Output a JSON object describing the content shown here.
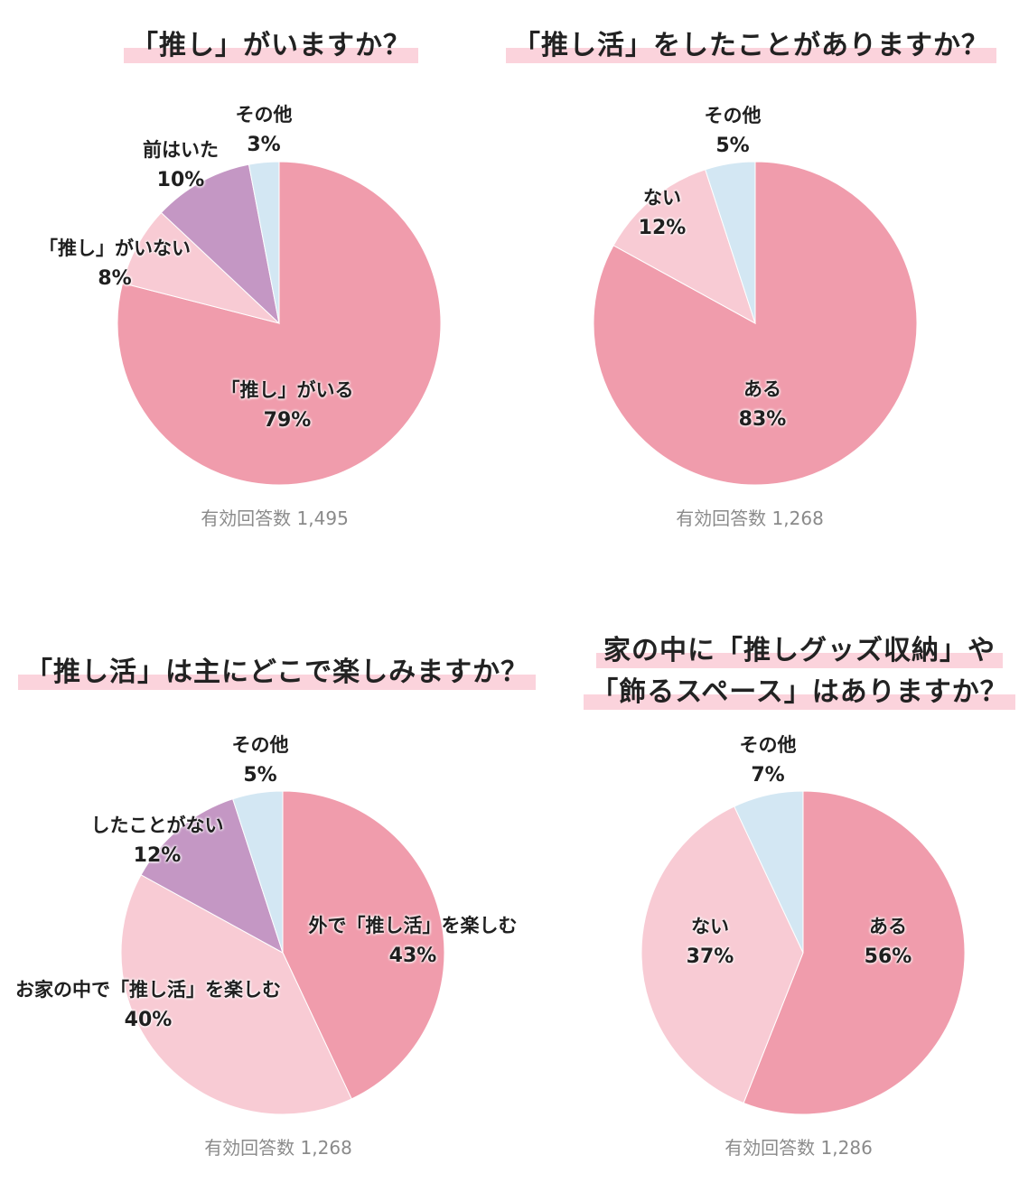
{
  "colors": {
    "main": "#f09cac",
    "light": "#f8cbd4",
    "purple": "#c497c4",
    "blue": "#d3e7f3"
  },
  "chart_data": [
    {
      "type": "pie",
      "title": "「推し」がいますか？",
      "slices": [
        {
          "label": "「推し」がいる",
          "value": 79,
          "pct": "79%",
          "color": "#f09cac"
        },
        {
          "label": "「推し」がいない",
          "value": 8,
          "pct": "8%",
          "color": "#f8cbd4"
        },
        {
          "label": "前はいた",
          "value": 10,
          "pct": "10%",
          "color": "#c497c4"
        },
        {
          "label": "その他",
          "value": 3,
          "pct": "3%",
          "color": "#d3e7f3"
        }
      ],
      "responses": "有効回答数 1,495"
    },
    {
      "type": "pie",
      "title": "「推し活」をしたことがありますか？",
      "slices": [
        {
          "label": "ある",
          "value": 83,
          "pct": "83%",
          "color": "#f09cac"
        },
        {
          "label": "ない",
          "value": 12,
          "pct": "12%",
          "color": "#f8cbd4"
        },
        {
          "label": "その他",
          "value": 5,
          "pct": "5%",
          "color": "#d3e7f3"
        }
      ],
      "responses": "有効回答数 1,268"
    },
    {
      "type": "pie",
      "title": "「推し活」は主にどこで楽しみますか？",
      "slices": [
        {
          "label": "外で「推し活」を楽しむ",
          "value": 43,
          "pct": "43%",
          "color": "#f09cac"
        },
        {
          "label": "お家の中で「推し活」を楽しむ",
          "value": 40,
          "pct": "40%",
          "color": "#f8cbd4"
        },
        {
          "label": "したことがない",
          "value": 12,
          "pct": "12%",
          "color": "#c497c4"
        },
        {
          "label": "その他",
          "value": 5,
          "pct": "5%",
          "color": "#d3e7f3"
        }
      ],
      "responses": "有効回答数 1,268"
    },
    {
      "type": "pie",
      "title": [
        "家の中に「推しグッズ収納」や",
        "「飾るスペース」はありますか？"
      ],
      "slices": [
        {
          "label": "ある",
          "value": 56,
          "pct": "56%",
          "color": "#f09cac"
        },
        {
          "label": "ない",
          "value": 37,
          "pct": "37%",
          "color": "#f8cbd4"
        },
        {
          "label": "その他",
          "value": 7,
          "pct": "7%",
          "color": "#d3e7f3"
        }
      ],
      "responses": "有効回答数 1,286"
    }
  ]
}
